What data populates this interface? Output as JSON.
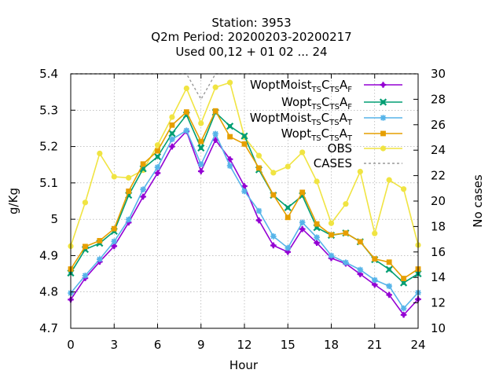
{
  "chart_data": {
    "type": "line",
    "title_lines": [
      "Station:      3953",
      "Q2m   Period: 20200203-20200217",
      "Used  00,12  + 01 02 ... 24"
    ],
    "xlabel": "Hour",
    "ylabel": "g/Kg",
    "y2label": "No cases",
    "xlim": [
      0,
      24
    ],
    "ylim": [
      4.7,
      5.4
    ],
    "y2lim": [
      10,
      30
    ],
    "xticks": [
      0,
      3,
      6,
      9,
      12,
      15,
      18,
      21,
      24
    ],
    "xtick_labels": [
      "0",
      "3",
      "6",
      "9",
      "12",
      "15",
      "18",
      "21",
      "24"
    ],
    "yticks": [
      4.7,
      4.8,
      4.9,
      5.0,
      5.1,
      5.2,
      5.3,
      5.4
    ],
    "ytick_labels": [
      "4.7",
      "4.8",
      "4.9",
      "5",
      "5.1",
      "5.2",
      "5.3",
      "5.4"
    ],
    "y2ticks": [
      10,
      12,
      14,
      16,
      18,
      20,
      22,
      24,
      26,
      28,
      30
    ],
    "y2tick_labels": [
      "10",
      "12",
      "14",
      "16",
      "18",
      "20",
      "22",
      "24",
      "26",
      "28",
      "30"
    ],
    "grid": true,
    "legend_position": "top-right",
    "x": [
      0,
      1,
      2,
      3,
      4,
      5,
      6,
      7,
      8,
      9,
      10,
      11,
      12,
      13,
      14,
      15,
      16,
      17,
      18,
      19,
      20,
      21,
      22,
      23,
      24
    ],
    "series": [
      {
        "legend": {
          "a": "WoptMoist",
          "b": "TS",
          "c": "C",
          "d": "TS",
          "e": "A",
          "f": "F"
        },
        "color": "#9400d3",
        "marker": "plus",
        "values": [
          4.779,
          4.838,
          4.883,
          4.926,
          4.991,
          5.062,
          5.127,
          5.2,
          5.242,
          5.132,
          5.218,
          5.165,
          5.091,
          4.997,
          4.928,
          4.91,
          4.973,
          4.935,
          4.893,
          4.878,
          4.849,
          4.82,
          4.792,
          4.737,
          4.78
        ]
      },
      {
        "legend": {
          "a": "Wopt",
          "b": "TS",
          "c": "C",
          "d": "TS",
          "e": "A",
          "f": "F"
        },
        "color": "#009e73",
        "marker": "cross",
        "values": [
          4.852,
          4.917,
          4.934,
          4.967,
          5.066,
          5.139,
          5.172,
          5.236,
          5.287,
          5.196,
          5.294,
          5.256,
          5.229,
          5.136,
          5.066,
          5.032,
          5.065,
          4.977,
          4.956,
          4.962,
          4.938,
          4.889,
          4.862,
          4.825,
          4.85
        ]
      },
      {
        "legend": {
          "a": "WoptMoist",
          "b": "TS",
          "c": "C",
          "d": "TS",
          "e": "A",
          "f": "T"
        },
        "color": "#56b4e9",
        "marker": "star",
        "values": [
          4.797,
          4.845,
          4.89,
          4.939,
          4.999,
          5.082,
          5.143,
          5.22,
          5.244,
          5.151,
          5.235,
          5.147,
          5.077,
          5.023,
          4.953,
          4.921,
          4.991,
          4.95,
          4.9,
          4.881,
          4.861,
          4.833,
          4.816,
          4.755,
          4.798
        ]
      },
      {
        "legend": {
          "a": "Wopt",
          "b": "TS",
          "c": "C",
          "d": "TS",
          "e": "A",
          "f": "T"
        },
        "color": "#e69f00",
        "marker": "square",
        "values": [
          4.863,
          4.925,
          4.941,
          4.974,
          5.077,
          5.152,
          5.188,
          5.259,
          5.295,
          5.214,
          5.298,
          5.227,
          5.207,
          5.141,
          5.067,
          5.005,
          5.074,
          4.987,
          4.957,
          4.962,
          4.938,
          4.891,
          4.882,
          4.837,
          4.863
        ]
      },
      {
        "legend": {
          "a": "OBS"
        },
        "color": "#f0e442",
        "marker": "circle",
        "values": [
          4.926,
          5.046,
          5.181,
          5.117,
          5.114,
          5.135,
          5.204,
          5.281,
          5.36,
          5.264,
          5.363,
          5.376,
          5.226,
          5.175,
          5.128,
          5.145,
          5.184,
          5.104,
          4.989,
          5.042,
          5.131,
          4.961,
          5.108,
          5.083,
          4.929
        ]
      }
    ],
    "cases": {
      "legend": "CASES",
      "color": "#999999",
      "axis": "y2",
      "values": [
        30,
        30,
        30,
        30,
        30,
        30,
        30,
        30,
        30,
        28,
        30,
        30,
        30,
        30,
        30,
        30,
        30,
        30,
        30,
        30,
        30,
        30,
        30,
        30,
        30
      ]
    }
  }
}
